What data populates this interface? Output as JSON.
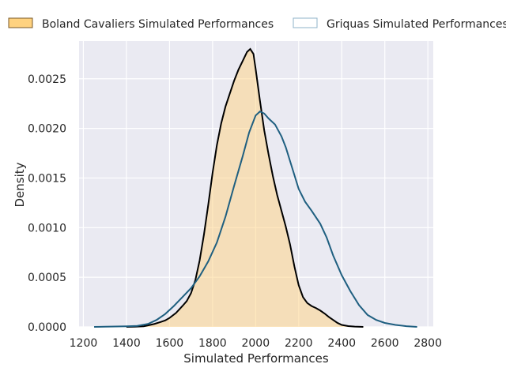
{
  "chart_data": {
    "type": "area",
    "title": "",
    "xlabel": "Simulated Performances",
    "ylabel": "Density",
    "xlim": [
      1180,
      2825
    ],
    "ylim": [
      0,
      0.00288
    ],
    "x_ticks": [
      1200,
      1400,
      1600,
      1800,
      2000,
      2200,
      2400,
      2600,
      2800
    ],
    "y_ticks": [
      0.0,
      0.0005,
      0.001,
      0.0015,
      0.002,
      0.0025
    ],
    "y_tick_labels": [
      "0.0000",
      "0.0005",
      "0.0010",
      "0.0015",
      "0.0020",
      "0.0025"
    ],
    "grid": true,
    "legend_position": "top",
    "series": [
      {
        "name": "Boland Cavaliers Simulated Performances",
        "style": "filled",
        "fill_color": "#ffd27f",
        "line_color": "#000000",
        "points": [
          [
            1400,
            0.0
          ],
          [
            1440,
            2e-06
          ],
          [
            1480,
            6e-06
          ],
          [
            1500,
            1.5e-05
          ],
          [
            1530,
            3e-05
          ],
          [
            1560,
            5e-05
          ],
          [
            1580,
            6.5e-05
          ],
          [
            1600,
            9e-05
          ],
          [
            1630,
            0.00014
          ],
          [
            1660,
            0.00021
          ],
          [
            1680,
            0.00026
          ],
          [
            1700,
            0.00034
          ],
          [
            1720,
            0.00047
          ],
          [
            1740,
            0.00067
          ],
          [
            1760,
            0.00093
          ],
          [
            1780,
            0.00123
          ],
          [
            1800,
            0.00155
          ],
          [
            1820,
            0.00183
          ],
          [
            1840,
            0.00205
          ],
          [
            1860,
            0.00222
          ],
          [
            1880,
            0.00235
          ],
          [
            1900,
            0.00248
          ],
          [
            1920,
            0.00259
          ],
          [
            1940,
            0.00268
          ],
          [
            1960,
            0.00277
          ],
          [
            1975,
            0.0028
          ],
          [
            1990,
            0.00275
          ],
          [
            2000,
            0.0026
          ],
          [
            2020,
            0.00228
          ],
          [
            2040,
            0.00198
          ],
          [
            2060,
            0.00174
          ],
          [
            2080,
            0.00152
          ],
          [
            2100,
            0.00133
          ],
          [
            2120,
            0.00117
          ],
          [
            2140,
            0.00101
          ],
          [
            2160,
            0.00083
          ],
          [
            2180,
            0.00061
          ],
          [
            2200,
            0.00042
          ],
          [
            2220,
            0.0003
          ],
          [
            2240,
            0.00024
          ],
          [
            2260,
            0.00021
          ],
          [
            2280,
            0.00019
          ],
          [
            2300,
            0.000165
          ],
          [
            2320,
            0.000135
          ],
          [
            2340,
            0.0001
          ],
          [
            2360,
            7e-05
          ],
          [
            2380,
            4e-05
          ],
          [
            2400,
            2e-05
          ],
          [
            2430,
            8e-06
          ],
          [
            2460,
            3e-06
          ],
          [
            2500,
            0.0
          ]
        ]
      },
      {
        "name": "Griquas Simulated Performances",
        "style": "line",
        "fill_color": "none",
        "line_color": "#1f5f80",
        "legend_edge_color": "#8fb3c9",
        "points": [
          [
            1250,
            0.0
          ],
          [
            1300,
            2e-06
          ],
          [
            1350,
            4e-06
          ],
          [
            1400,
            6e-06
          ],
          [
            1450,
            1e-05
          ],
          [
            1500,
            3e-05
          ],
          [
            1540,
            7e-05
          ],
          [
            1580,
            0.00013
          ],
          [
            1620,
            0.00021
          ],
          [
            1660,
            0.0003
          ],
          [
            1700,
            0.00039
          ],
          [
            1740,
            0.00051
          ],
          [
            1780,
            0.00066
          ],
          [
            1820,
            0.00085
          ],
          [
            1860,
            0.00111
          ],
          [
            1900,
            0.00142
          ],
          [
            1940,
            0.00172
          ],
          [
            1970,
            0.00196
          ],
          [
            2000,
            0.00213
          ],
          [
            2020,
            0.00217
          ],
          [
            2040,
            0.00215
          ],
          [
            2060,
            0.0021
          ],
          [
            2090,
            0.00204
          ],
          [
            2120,
            0.00192
          ],
          [
            2140,
            0.00181
          ],
          [
            2170,
            0.0016
          ],
          [
            2200,
            0.00139
          ],
          [
            2230,
            0.00126
          ],
          [
            2260,
            0.00117
          ],
          [
            2300,
            0.00104
          ],
          [
            2330,
            0.0009
          ],
          [
            2360,
            0.00072
          ],
          [
            2400,
            0.00052
          ],
          [
            2440,
            0.00036
          ],
          [
            2480,
            0.00022
          ],
          [
            2520,
            0.00012
          ],
          [
            2560,
            7e-05
          ],
          [
            2600,
            4e-05
          ],
          [
            2650,
            2e-05
          ],
          [
            2700,
            7e-06
          ],
          [
            2750,
            0.0
          ]
        ]
      }
    ]
  }
}
